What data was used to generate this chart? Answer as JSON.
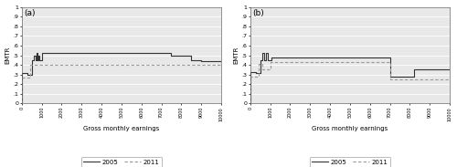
{
  "panel_a_2005_x": [
    0,
    1,
    1,
    300,
    300,
    500,
    500,
    600,
    600,
    700,
    700,
    750,
    750,
    800,
    800,
    850,
    850,
    900,
    900,
    1000,
    1000,
    1100,
    1100,
    4000,
    4000,
    4500,
    4500,
    7000,
    7000,
    7500,
    7500,
    8000,
    8000,
    8500,
    8500,
    9000,
    9000,
    10000
  ],
  "panel_a_2005_y": [
    0,
    0,
    0.32,
    0.32,
    0.3,
    0.3,
    0.45,
    0.45,
    0.5,
    0.5,
    0.45,
    0.45,
    0.52,
    0.52,
    0.45,
    0.45,
    0.5,
    0.5,
    0.45,
    0.45,
    0.52,
    0.52,
    0.52,
    0.52,
    0.52,
    0.52,
    0.52,
    0.52,
    0.52,
    0.52,
    0.5,
    0.5,
    0.5,
    0.5,
    0.45,
    0.45,
    0.44,
    0.44
  ],
  "panel_a_2011_x": [
    0,
    1,
    1,
    400,
    400,
    700,
    700,
    10000
  ],
  "panel_a_2011_y": [
    0,
    0,
    0.27,
    0.27,
    0.4,
    0.4,
    0.4,
    0.4
  ],
  "panel_b_2005_x": [
    0,
    1,
    1,
    300,
    300,
    500,
    500,
    600,
    600,
    700,
    700,
    800,
    800,
    900,
    900,
    1050,
    1050,
    1100,
    1100,
    7000,
    7000,
    7500,
    7500,
    8000,
    8000,
    8200,
    8200,
    9000,
    9000,
    10000
  ],
  "panel_b_2005_y": [
    0,
    0,
    0.33,
    0.33,
    0.32,
    0.32,
    0.45,
    0.45,
    0.52,
    0.52,
    0.45,
    0.45,
    0.52,
    0.52,
    0.45,
    0.45,
    0.48,
    0.48,
    0.48,
    0.48,
    0.28,
    0.28,
    0.28,
    0.28,
    0.28,
    0.28,
    0.35,
    0.35,
    0.35,
    0.35
  ],
  "panel_b_2011_x": [
    0,
    1,
    1,
    400,
    400,
    600,
    600,
    700,
    700,
    1000,
    1000,
    1100,
    1100,
    4000,
    4000,
    7000,
    7000,
    8500,
    8500,
    10000
  ],
  "panel_b_2011_y": [
    0,
    0,
    0.28,
    0.28,
    0.41,
    0.41,
    0.35,
    0.35,
    0.35,
    0.35,
    0.43,
    0.43,
    0.43,
    0.43,
    0.43,
    0.43,
    0.25,
    0.25,
    0.25,
    0.25
  ],
  "xlim": [
    0,
    10000
  ],
  "ylim": [
    0,
    1.0
  ],
  "yticks": [
    0,
    0.1,
    0.2,
    0.3,
    0.4,
    0.5,
    0.6,
    0.7,
    0.8,
    0.9,
    1.0
  ],
  "ytick_labels": [
    "0",
    ".1",
    ".2",
    ".3",
    ".4",
    ".5",
    ".6",
    ".7",
    ".8",
    ".9",
    "1"
  ],
  "xticks": [
    0,
    1000,
    2000,
    3000,
    4000,
    5000,
    6000,
    7000,
    8000,
    9000,
    10000
  ],
  "xtick_labels": [
    "0",
    "1000",
    "2000",
    "3000",
    "4000",
    "5000",
    "6000",
    "7000",
    "8000",
    "9000",
    "10000"
  ],
  "xlabel": "Gross monthly earnings",
  "ylabel": "EMTR",
  "color_2005": "#333333",
  "color_2011": "#999999",
  "line_width": 0.8,
  "legend_labels": [
    "2005",
    "2011"
  ],
  "panel_a_label": "(a)",
  "panel_b_label": "(b)",
  "bg_color": "#ffffff",
  "plot_bg_color": "#e8e8e8",
  "grid_color": "#ffffff"
}
